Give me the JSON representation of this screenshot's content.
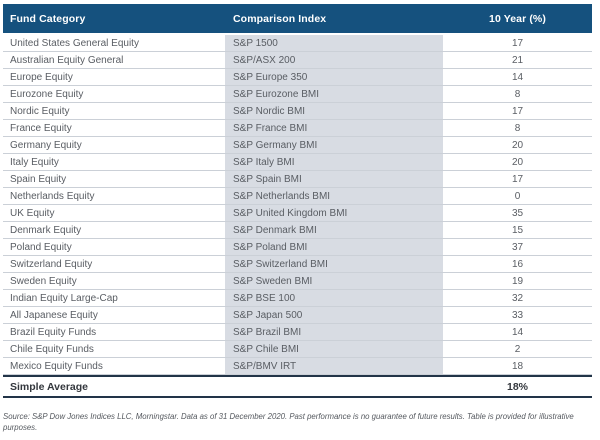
{
  "table": {
    "columns": [
      "Fund Category",
      "Comparison Index",
      "10 Year (%)"
    ],
    "rows": [
      {
        "category": "United States General Equity",
        "index": "S&P 1500",
        "ten_year": "17"
      },
      {
        "category": "Australian Equity General",
        "index": "S&P/ASX 200",
        "ten_year": "21"
      },
      {
        "category": "Europe Equity",
        "index": "S&P Europe 350",
        "ten_year": "14"
      },
      {
        "category": "Eurozone Equity",
        "index": "S&P Eurozone BMI",
        "ten_year": "8"
      },
      {
        "category": "Nordic Equity",
        "index": "S&P Nordic BMI",
        "ten_year": "17"
      },
      {
        "category": "France Equity",
        "index": "S&P France BMI",
        "ten_year": "8"
      },
      {
        "category": "Germany Equity",
        "index": "S&P Germany BMI",
        "ten_year": "20"
      },
      {
        "category": "Italy Equity",
        "index": "S&P Italy BMI",
        "ten_year": "20"
      },
      {
        "category": "Spain Equity",
        "index": "S&P Spain BMI",
        "ten_year": "17"
      },
      {
        "category": "Netherlands Equity",
        "index": "S&P Netherlands BMI",
        "ten_year": "0"
      },
      {
        "category": "UK Equity",
        "index": "S&P United Kingdom BMI",
        "ten_year": "35"
      },
      {
        "category": "Denmark Equity",
        "index": "S&P Denmark BMI",
        "ten_year": "15"
      },
      {
        "category": "Poland Equity",
        "index": "S&P Poland BMI",
        "ten_year": "37"
      },
      {
        "category": "Switzerland Equity",
        "index": "S&P Switzerland BMI",
        "ten_year": "16"
      },
      {
        "category": "Sweden Equity",
        "index": "S&P Sweden BMI",
        "ten_year": "19"
      },
      {
        "category": "Indian Equity Large-Cap",
        "index": "S&P BSE 100",
        "ten_year": "32"
      },
      {
        "category": "All Japanese Equity",
        "index": "S&P Japan 500",
        "ten_year": "33"
      },
      {
        "category": "Brazil Equity Funds",
        "index": "S&P Brazil BMI",
        "ten_year": "14"
      },
      {
        "category": "Chile Equity Funds",
        "index": "S&P Chile BMI",
        "ten_year": "2"
      },
      {
        "category": "Mexico Equity Funds",
        "index": "S&P/BMV IRT",
        "ten_year": "18"
      }
    ],
    "summary": {
      "label": "Simple Average",
      "value": "18%"
    }
  },
  "footer": {
    "source_note": "Source: S&P Dow Jones Indices LLC, Morningstar. Data as of 31 December 2020. Past performance is no guarantee of future results. Table is provided for illustrative purposes."
  },
  "colors": {
    "header_bg": "#15517E",
    "header_text": "#FFFFFF",
    "index_column_bg": "#D8DCE3",
    "row_divider": "#CBD0D7",
    "summary_border": "#223448",
    "body_text": "#595D63"
  }
}
